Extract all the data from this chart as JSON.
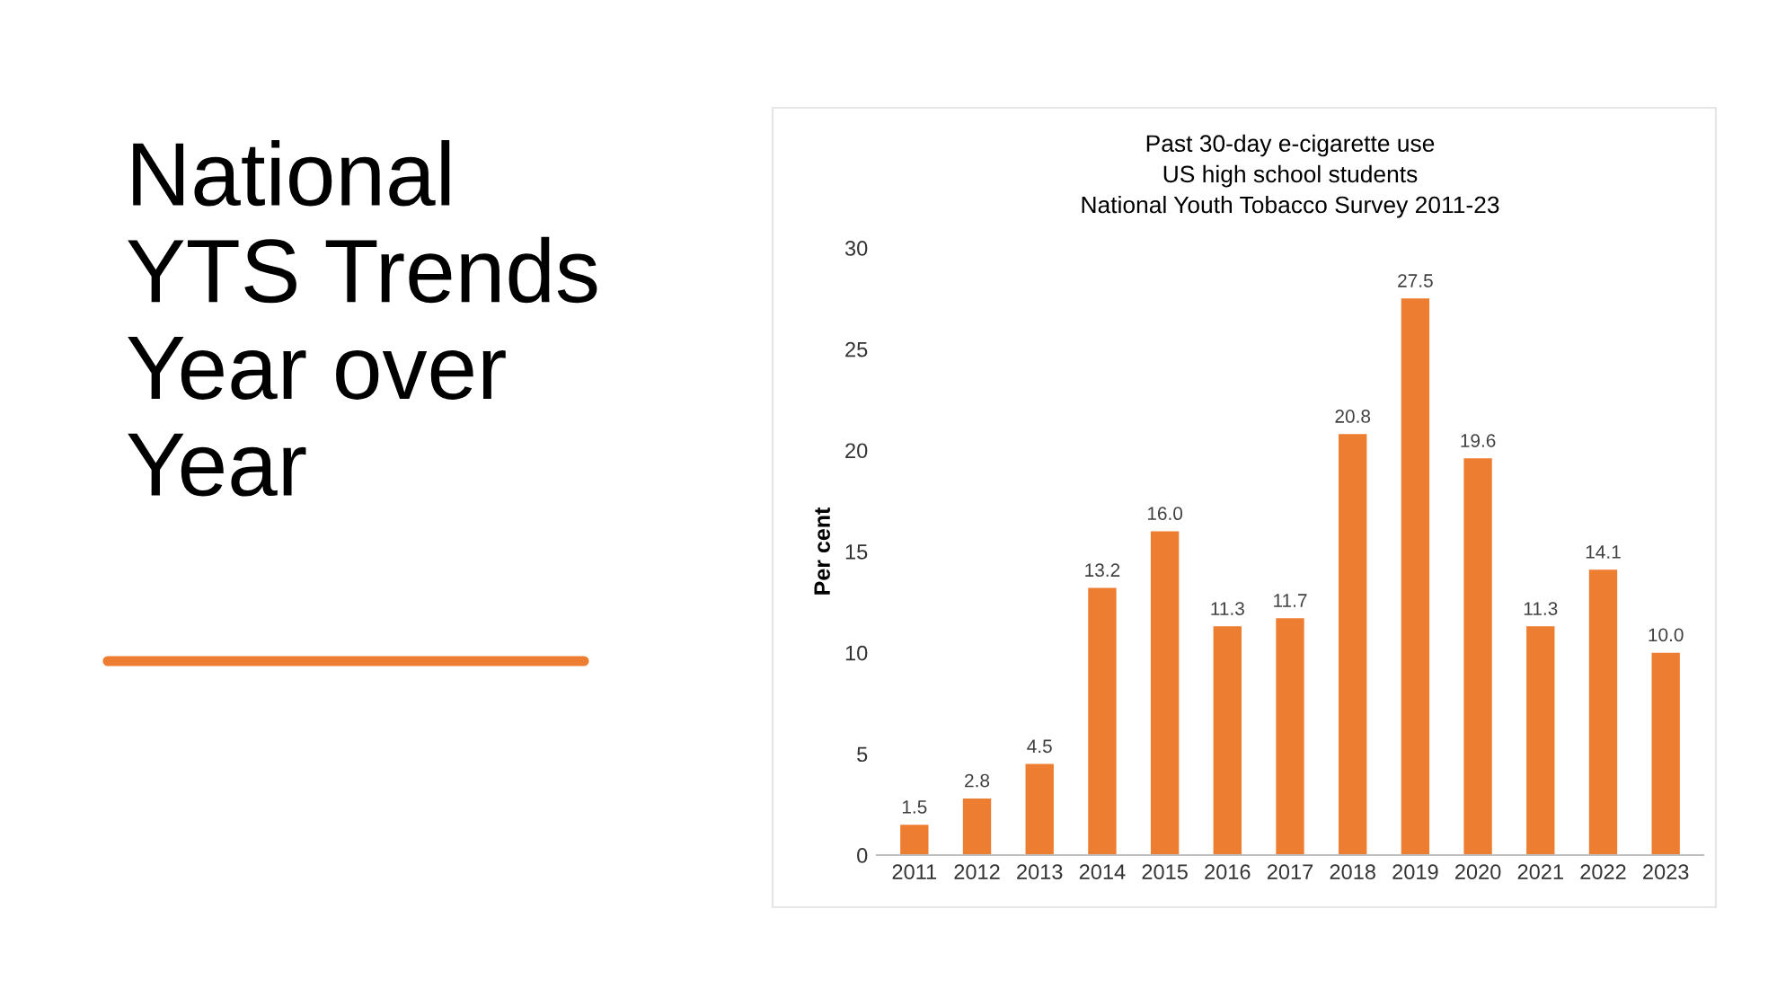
{
  "chart_data": {
    "type": "bar",
    "title": "Past 30-day e-cigarette use\nUS high school students\nNational Youth Tobacco Survey 2011-23",
    "ylabel": "Per cent",
    "annotations": [
      "National\nYTS Trends\nYear over\nYear"
    ],
    "categories": [
      "2011",
      "2012",
      "2013",
      "2014",
      "2015",
      "2016",
      "2017",
      "2018",
      "2019",
      "2020",
      "2021",
      "2022",
      "2023"
    ],
    "values": [
      1.5,
      2.8,
      4.5,
      13.2,
      16.0,
      11.3,
      11.7,
      20.8,
      27.5,
      19.6,
      11.3,
      14.1,
      10.0
    ],
    "value_labels": [
      "1.5",
      "2.8",
      "4.5",
      "13.2",
      "16.0",
      "11.3",
      "11.7",
      "20.8",
      "27.5",
      "19.6",
      "11.3",
      "14.1",
      "10.0"
    ],
    "color": "#ed7d31",
    "ylim": [
      0,
      30
    ],
    "yticks": [
      0,
      5,
      10,
      15,
      20,
      25,
      30
    ],
    "grid": false
  }
}
